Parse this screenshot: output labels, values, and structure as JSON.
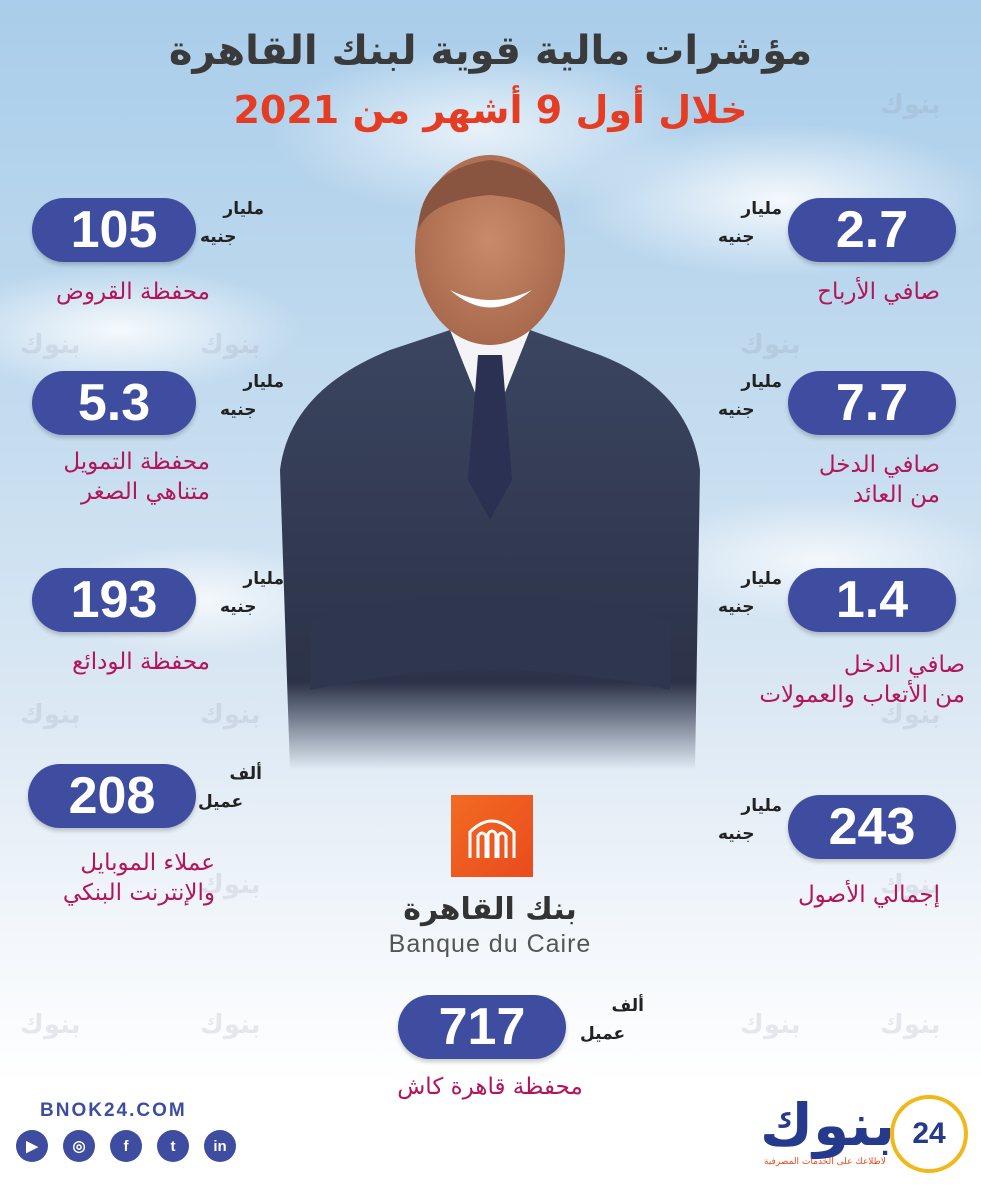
{
  "header": {
    "title": "مؤشرات مالية قوية لبنك القاهرة",
    "subtitle": "خلال أول 9 أشهر من 2021"
  },
  "stats_left": [
    {
      "value": "105",
      "unit_top": "مليار",
      "unit_bottom": "جنيه",
      "label": "محفظة القروض"
    },
    {
      "value": "5.3",
      "unit_top": "مليار",
      "unit_bottom": "جنيه",
      "label_line1": "محفظة التمويل",
      "label_line2": "متناهي الصغر"
    },
    {
      "value": "193",
      "unit_top": "مليار",
      "unit_bottom": "جنيه",
      "label": "محفظة الودائع"
    },
    {
      "value": "208",
      "unit_top": "ألف",
      "unit_bottom": "عميل",
      "label_line1": "عملاء الموبايل",
      "label_line2": "والإنترنت البنكي"
    }
  ],
  "stats_right": [
    {
      "value": "2.7",
      "unit_top": "مليار",
      "unit_bottom": "جنيه",
      "label": "صافي الأرباح"
    },
    {
      "value": "7.7",
      "unit_top": "مليار",
      "unit_bottom": "جنيه",
      "label_line1": "صافي الدخل",
      "label_line2": "من العائد"
    },
    {
      "value": "1.4",
      "unit_top": "مليار",
      "unit_bottom": "جنيه",
      "label_line1": "صافي الدخل",
      "label_line2": "من الأتعاب والعمولات"
    },
    {
      "value": "243",
      "unit_top": "مليار",
      "unit_bottom": "جنيه",
      "label": "إجمالي الأصول"
    }
  ],
  "stat_center": {
    "value": "717",
    "unit_top": "ألف",
    "unit_bottom": "عميل",
    "label": "محفظة قاهرة كاش"
  },
  "logo": {
    "arabic": "بنك القاهرة",
    "english": "Banque du Caire"
  },
  "footer": {
    "website": "BNOK24.COM",
    "brand_name": "بنوك",
    "brand_number": "24",
    "brand_tagline": "لاطلاعك على الخدمات المصرفية",
    "social": [
      "youtube-icon",
      "instagram-icon",
      "facebook-icon",
      "twitter-icon",
      "linkedin-icon"
    ]
  },
  "watermark": "بنوك",
  "colors": {
    "pill": "#3e4da0",
    "label": "#b3155a",
    "subtitle": "#e53d23",
    "logo": "#f26b22"
  }
}
